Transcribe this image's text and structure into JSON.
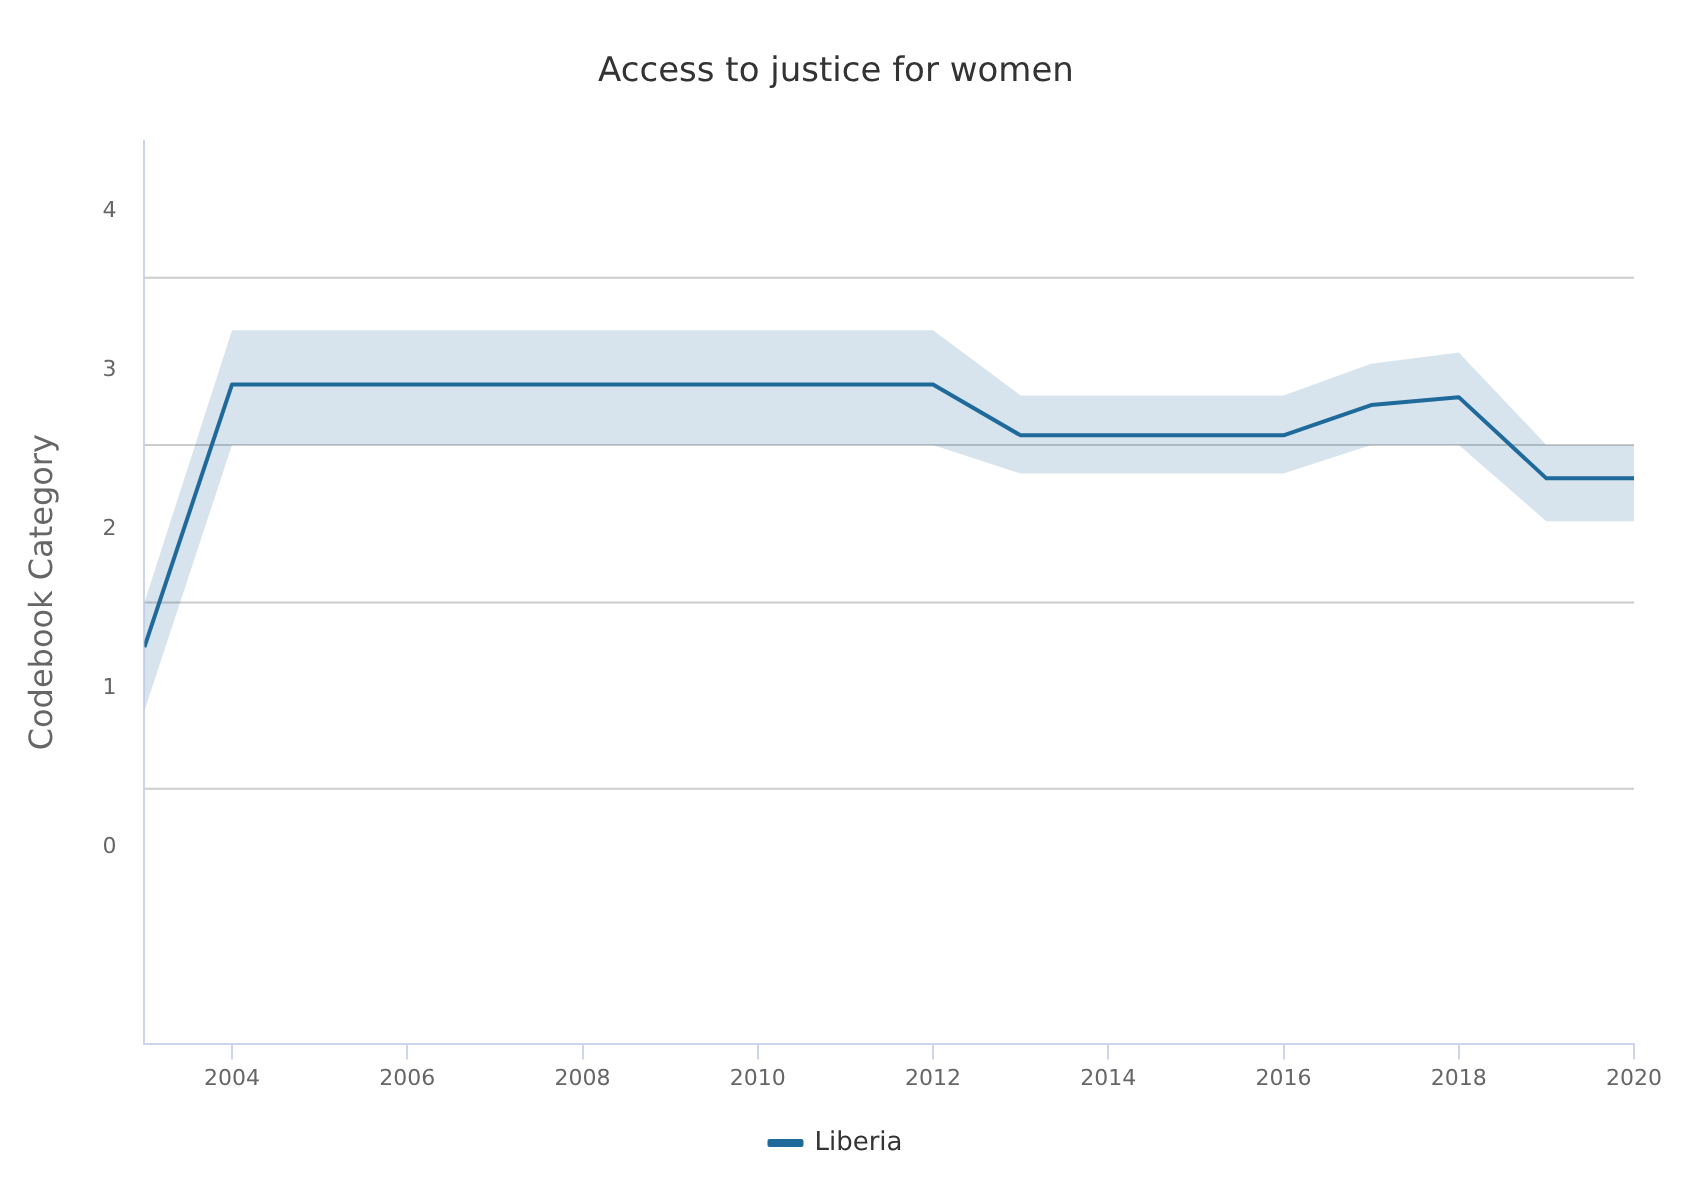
{
  "chart_data": {
    "type": "line",
    "title": "Access to justice for women",
    "ylabel": "Codebook Category",
    "x": [
      2003,
      2004,
      2012,
      2013,
      2016,
      2017,
      2018,
      2019,
      2020
    ],
    "series": [
      {
        "name": "Liberia",
        "color": "#1f6a9a",
        "values": [
          1.26,
          2.91,
          2.91,
          2.59,
          2.59,
          2.78,
          2.83,
          2.32,
          2.32
        ],
        "lower": [
          0.86,
          2.53,
          2.53,
          2.35,
          2.35,
          2.53,
          2.53,
          2.05,
          2.05
        ],
        "upper": [
          1.54,
          3.25,
          3.25,
          2.84,
          2.84,
          3.04,
          3.11,
          2.53,
          2.53
        ]
      }
    ],
    "xlim": [
      2003,
      2020
    ],
    "xticks": [
      2004,
      2006,
      2008,
      2010,
      2012,
      2014,
      2016,
      2018,
      2020
    ],
    "ylim": [
      -1.23,
      4.44
    ],
    "yticks": [
      0,
      1,
      2,
      3,
      4
    ],
    "ref_lines": [
      {
        "axis": "y",
        "value": 3.58,
        "color": "#cccccc"
      },
      {
        "axis": "y",
        "value": 2.53,
        "color": "#cccccc"
      },
      {
        "axis": "y",
        "value": 1.54,
        "color": "#cccccc"
      },
      {
        "axis": "y",
        "value": 0.37,
        "color": "#cccccc"
      }
    ],
    "grid": false,
    "legend": "bottom",
    "marker": "none",
    "line_style": "solid"
  }
}
